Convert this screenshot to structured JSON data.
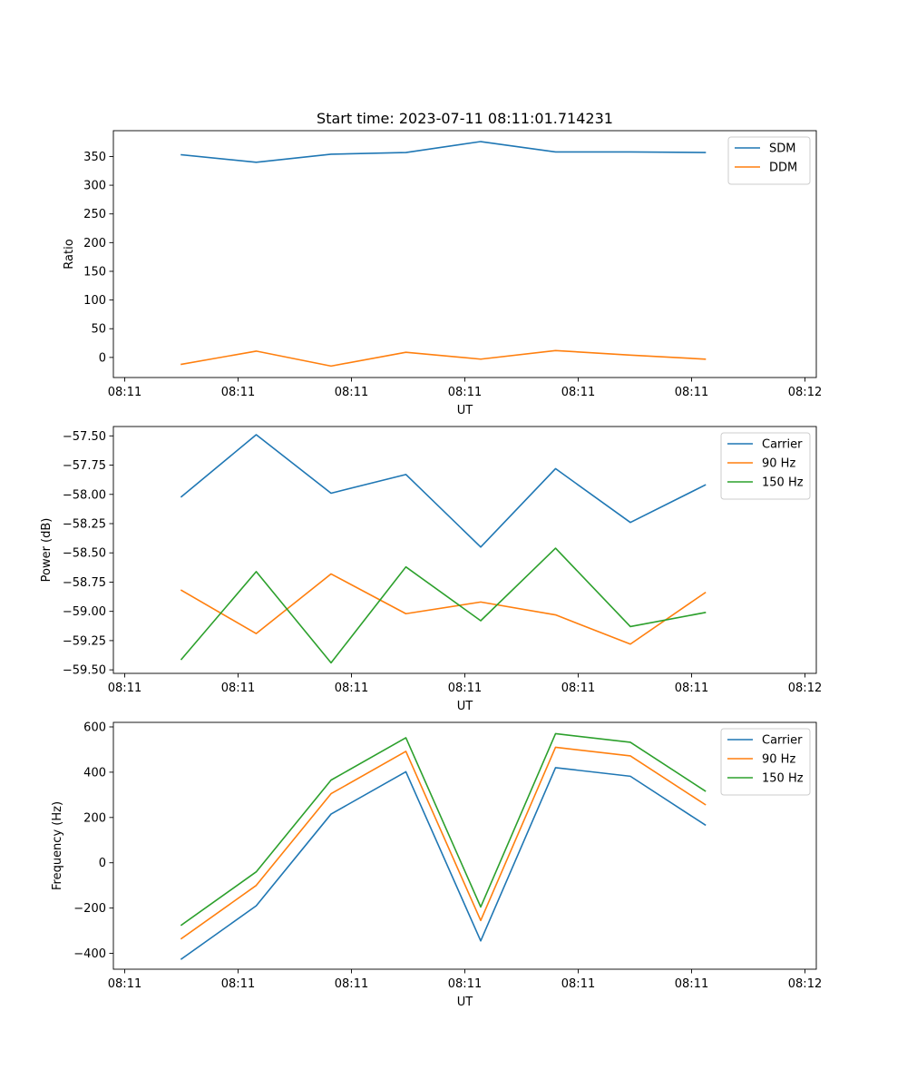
{
  "chart_data": [
    {
      "type": "line",
      "title": "Start time: 2023-07-11 08:11:01.714231",
      "xlabel": "UT",
      "ylabel": "Ratio",
      "x_tick_labels": [
        "08:11",
        "08:11",
        "08:11",
        "08:11",
        "08:11",
        "08:11",
        "08:12"
      ],
      "x_ticks": [
        0,
        1,
        2,
        3,
        4,
        5,
        6
      ],
      "xlim": [
        -0.1,
        6.1
      ],
      "x": [
        0.5,
        1.16,
        1.82,
        2.48,
        3.14,
        3.8,
        4.46,
        5.12
      ],
      "ylim": [
        -35,
        395
      ],
      "y_ticks": [
        0,
        50,
        100,
        150,
        200,
        250,
        300,
        350
      ],
      "y_tick_labels": [
        "0",
        "50",
        "100",
        "150",
        "200",
        "250",
        "300",
        "350"
      ],
      "series": [
        {
          "name": "SDM",
          "color": "#1f77b4",
          "values": [
            353,
            340,
            354,
            357,
            376,
            358,
            358,
            357
          ]
        },
        {
          "name": "DDM",
          "color": "#ff7f0e",
          "values": [
            -12,
            11,
            -15,
            9,
            -3,
            12,
            4,
            -3
          ]
        }
      ]
    },
    {
      "type": "line",
      "title": "",
      "xlabel": "UT",
      "ylabel": "Power (dB)",
      "x_tick_labels": [
        "08:11",
        "08:11",
        "08:11",
        "08:11",
        "08:11",
        "08:11",
        "08:12"
      ],
      "x_ticks": [
        0,
        1,
        2,
        3,
        4,
        5,
        6
      ],
      "xlim": [
        -0.1,
        6.1
      ],
      "x": [
        0.5,
        1.16,
        1.82,
        2.48,
        3.14,
        3.8,
        4.46,
        5.12
      ],
      "ylim": [
        -59.53,
        -57.42
      ],
      "y_ticks": [
        -59.5,
        -59.25,
        -59.0,
        -58.75,
        -58.5,
        -58.25,
        -58.0,
        -57.75,
        -57.5
      ],
      "y_tick_labels": [
        "−59.50",
        "−59.25",
        "−59.00",
        "−58.75",
        "−58.50",
        "−58.25",
        "−58.00",
        "−57.75",
        "−57.50"
      ],
      "series": [
        {
          "name": "Carrier",
          "color": "#1f77b4",
          "values": [
            -58.02,
            -57.49,
            -57.99,
            -57.83,
            -58.45,
            -57.78,
            -58.24,
            -57.92
          ]
        },
        {
          "name": "90 Hz",
          "color": "#ff7f0e",
          "values": [
            -58.82,
            -59.19,
            -58.68,
            -59.02,
            -58.92,
            -59.03,
            -59.28,
            -58.84
          ]
        },
        {
          "name": "150 Hz",
          "color": "#2ca02c",
          "values": [
            -59.41,
            -58.66,
            -59.44,
            -58.62,
            -59.08,
            -58.46,
            -59.13,
            -59.01
          ]
        }
      ]
    },
    {
      "type": "line",
      "title": "",
      "xlabel": "UT",
      "ylabel": "Frequency (Hz)",
      "x_tick_labels": [
        "08:11",
        "08:11",
        "08:11",
        "08:11",
        "08:11",
        "08:11",
        "08:12"
      ],
      "x_ticks": [
        0,
        1,
        2,
        3,
        4,
        5,
        6
      ],
      "xlim": [
        -0.1,
        6.1
      ],
      "x": [
        0.5,
        1.16,
        1.82,
        2.48,
        3.14,
        3.8,
        4.46,
        5.12
      ],
      "ylim": [
        -470,
        620
      ],
      "y_ticks": [
        -400,
        -200,
        0,
        200,
        400,
        600
      ],
      "y_tick_labels": [
        "−400",
        "−200",
        "0",
        "200",
        "400",
        "600"
      ],
      "series": [
        {
          "name": "Carrier",
          "color": "#1f77b4",
          "values": [
            -425,
            -190,
            215,
            402,
            -345,
            420,
            382,
            167
          ]
        },
        {
          "name": "90 Hz",
          "color": "#ff7f0e",
          "values": [
            -335,
            -100,
            305,
            492,
            -255,
            510,
            472,
            257
          ]
        },
        {
          "name": "150 Hz",
          "color": "#2ca02c",
          "values": [
            -275,
            -40,
            365,
            552,
            -195,
            570,
            532,
            317
          ]
        }
      ]
    }
  ]
}
